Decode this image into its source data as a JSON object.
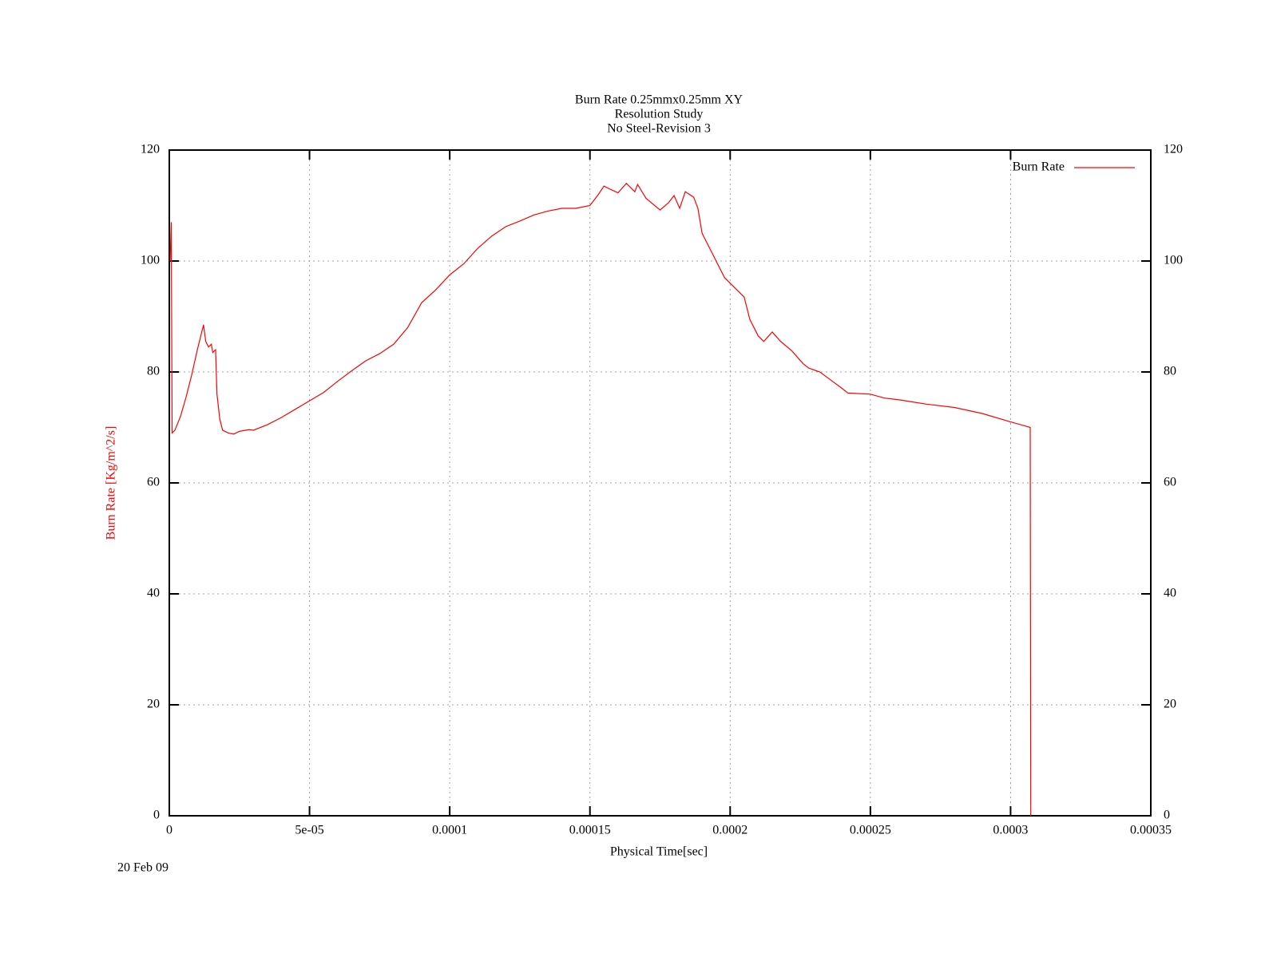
{
  "chart_data": {
    "type": "line",
    "title": "Burn Rate 0.25mmx0.25mm XY",
    "subtitle": [
      "Resolution Study",
      "No Steel-Revision 3"
    ],
    "x_label": "Physical Time[sec]",
    "y_label": "Burn Rate  [Kg/m^2/s]",
    "annotation": "20 Feb 09",
    "xlim": [
      0,
      0.00035
    ],
    "xticks": [
      0,
      {
        "value": 5e-05,
        "label": "5e-05"
      },
      0.0001,
      0.00015,
      0.0002,
      0.00025,
      0.0003,
      0.00035
    ],
    "ylim": [
      0,
      120
    ],
    "yticks": [
      0,
      20,
      40,
      60,
      80,
      100,
      120
    ],
    "y2lim": [
      0,
      120
    ],
    "y2ticks": [
      0,
      20,
      40,
      60,
      80,
      100,
      120
    ],
    "grid": true,
    "legend": "top-right",
    "x": [
      3e-07,
      7e-07,
      1e-06,
      2e-06,
      4e-06,
      6e-06,
      8e-06,
      1e-05,
      1.22e-05,
      1.3e-05,
      1.4e-05,
      1.5e-05,
      1.55e-05,
      1.65e-05,
      1.7e-05,
      1.8e-05,
      1.9e-05,
      2.1e-05,
      2.3e-05,
      2.5e-05,
      2.85e-05,
      3e-05,
      3.5e-05,
      4e-05,
      4.5e-05,
      5e-05,
      5.5e-05,
      6e-05,
      6.5e-05,
      7e-05,
      7.5e-05,
      8e-05,
      8.5e-05,
      9e-05,
      9.5e-05,
      0.0001,
      0.000105,
      0.00011,
      0.000115,
      0.00012,
      0.000125,
      0.00013,
      0.000135,
      0.00014,
      0.000145,
      0.00015,
      0.000153,
      0.000155,
      0.000157,
      0.00016,
      0.000163,
      0.000166,
      0.000167,
      0.00017,
      0.000175,
      0.000178,
      0.00018,
      0.000182,
      0.000184,
      0.000187,
      0.0001885,
      0.00019,
      0.000192,
      0.000195,
      0.000198,
      0.0002,
      0.000205,
      0.000207,
      0.00021,
      0.000212,
      0.000215,
      0.000218,
      0.000222,
      0.000226,
      0.000228,
      0.000232,
      0.000236,
      0.00024,
      0.000242,
      0.00025,
      0.000255,
      0.00026,
      0.00027,
      0.00028,
      0.00029,
      0.0003,
      0.000305,
      0.000307,
      0.0003072
    ],
    "series": [
      {
        "name": "Burn Rate",
        "color": "#ff0000",
        "values": [
          100,
          107,
          69,
          69.5,
          72,
          75.5,
          79.5,
          84,
          88.5,
          85.5,
          84.5,
          85,
          83.5,
          84,
          76,
          71.5,
          69.5,
          69,
          68.8,
          69.3,
          69.6,
          69.5,
          70.5,
          71.8,
          73.3,
          74.8,
          76.3,
          78.3,
          80.2,
          82,
          83.3,
          85,
          88,
          92.5,
          94.8,
          97.5,
          99.5,
          102.3,
          104.5,
          106.2,
          107.2,
          108.3,
          109,
          109.5,
          109.5,
          110,
          112,
          113.5,
          113,
          112.3,
          114,
          112.5,
          113.8,
          111.3,
          109.2,
          110.5,
          111.8,
          109.5,
          112.5,
          111.5,
          109.5,
          105,
          103,
          100,
          97,
          96,
          93.5,
          89.5,
          86.5,
          85.5,
          87.2,
          85.5,
          83.8,
          81.5,
          80.7,
          80,
          78.5,
          77,
          76.2,
          76,
          75.3,
          75,
          74.2,
          73.6,
          72.5,
          71,
          70.3,
          70,
          0
        ]
      }
    ]
  }
}
